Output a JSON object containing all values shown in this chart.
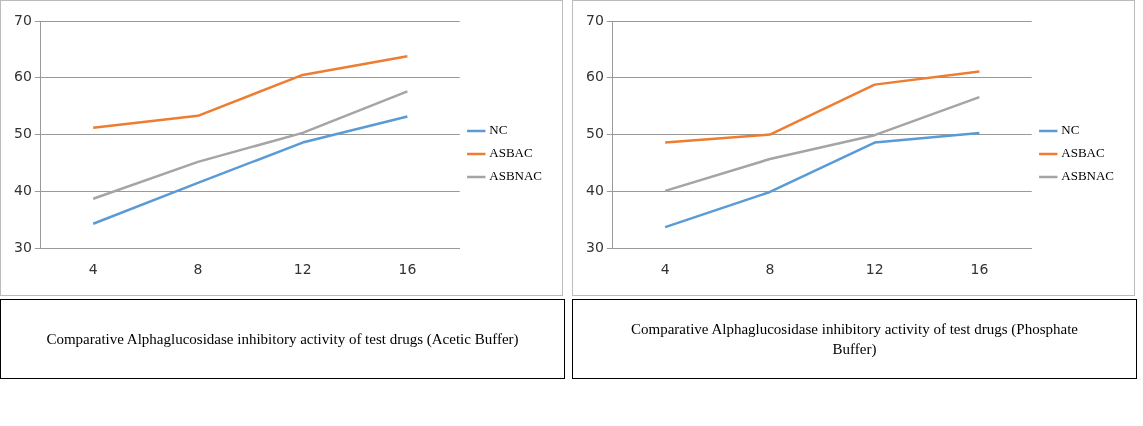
{
  "chart_data": [
    {
      "type": "line",
      "title": "Comparative Alphaglucosidase inhibitory activity of test drugs (Acetic Buffer)",
      "categories": [
        "4",
        "8",
        "12",
        "16"
      ],
      "ylim": [
        30,
        70
      ],
      "yticks": [
        30,
        40,
        50,
        60,
        70
      ],
      "grid": "y",
      "legend": "right",
      "marker": "none",
      "series": [
        {
          "name": "NC",
          "color": "#5b9bd5",
          "values": [
            34.3,
            41.5,
            48.6,
            53.2
          ]
        },
        {
          "name": "ASBAC",
          "color": "#ed7d31",
          "values": [
            51.2,
            53.3,
            60.5,
            63.8
          ]
        },
        {
          "name": "ASBNAC",
          "color": "#a5a5a5",
          "values": [
            38.7,
            45.2,
            50.3,
            57.6
          ]
        }
      ]
    },
    {
      "type": "line",
      "title": "Comparative Alphaglucosidase inhibitory activity of test drugs (Phosphate Buffer)",
      "categories": [
        "4",
        "8",
        "12",
        "16"
      ],
      "ylim": [
        30,
        70
      ],
      "yticks": [
        30,
        40,
        50,
        60,
        70
      ],
      "grid": "y",
      "legend": "right",
      "marker": "none",
      "series": [
        {
          "name": "NC",
          "color": "#5b9bd5",
          "values": [
            33.7,
            39.9,
            48.6,
            50.3
          ]
        },
        {
          "name": "ASBAC",
          "color": "#ed7d31",
          "values": [
            48.6,
            50.0,
            58.8,
            61.1
          ]
        },
        {
          "name": "ASBNAC",
          "color": "#a5a5a5",
          "values": [
            40.1,
            45.7,
            49.9,
            56.6
          ]
        }
      ]
    }
  ]
}
